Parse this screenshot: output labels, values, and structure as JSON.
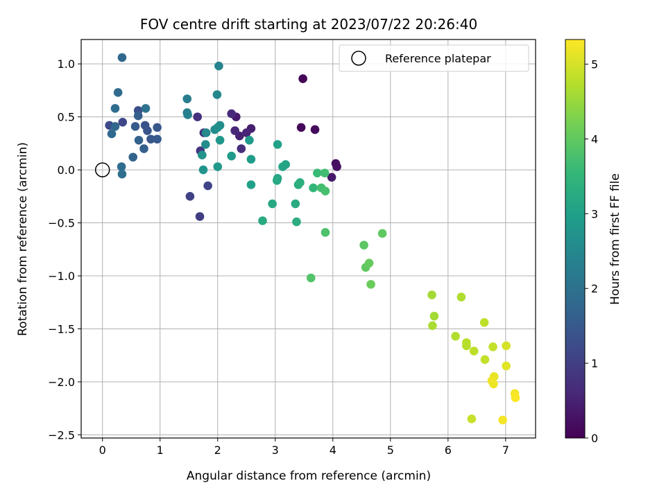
{
  "chart_data": {
    "type": "scatter",
    "title": "FOV centre drift starting at 2023/07/22 20:26:40",
    "xlabel": "Angular distance from reference (arcmin)",
    "ylabel": "Rotation from reference (arcmin)",
    "colorbar_label": "Hours from first FF file",
    "colormap": "viridis",
    "xlim": [
      -0.37,
      7.52
    ],
    "ylim": [
      -2.53,
      1.23
    ],
    "clim": [
      0,
      5.33
    ],
    "x_ticks": [
      0,
      1,
      2,
      3,
      4,
      5,
      6,
      7
    ],
    "x_tick_labels": [
      "0",
      "1",
      "2",
      "3",
      "4",
      "5",
      "6",
      "7"
    ],
    "y_ticks": [
      1.0,
      0.5,
      0.0,
      -0.5,
      -1.0,
      -1.5,
      -2.0,
      -2.5
    ],
    "y_tick_labels": [
      "1.0",
      "0.5",
      "0.0",
      "−0.5",
      "−1.0",
      "−1.5",
      "−2.0",
      "−2.5"
    ],
    "colorbar_ticks": [
      0,
      1,
      2,
      3,
      4,
      5
    ],
    "colorbar_tick_labels": [
      "0",
      "1",
      "2",
      "3",
      "4",
      "5"
    ],
    "grid": true,
    "legend": {
      "position": "top-right",
      "entries": [
        {
          "label": "Reference platepar",
          "marker": "open-circle"
        }
      ]
    },
    "reference_point": {
      "x": 0,
      "y": 0
    },
    "points": [
      {
        "x": 3.48,
        "y": 0.86,
        "h": 0.05
      },
      {
        "x": 3.45,
        "y": 0.4,
        "h": 0.1
      },
      {
        "x": 3.69,
        "y": 0.38,
        "h": 0.15
      },
      {
        "x": 4.05,
        "y": 0.06,
        "h": 0.2
      },
      {
        "x": 4.07,
        "y": 0.03,
        "h": 0.25
      },
      {
        "x": 3.98,
        "y": -0.07,
        "h": 0.35
      },
      {
        "x": 2.32,
        "y": 0.5,
        "h": 0.4
      },
      {
        "x": 2.58,
        "y": 0.39,
        "h": 0.45
      },
      {
        "x": 2.38,
        "y": 0.32,
        "h": 0.5
      },
      {
        "x": 2.5,
        "y": 0.35,
        "h": 0.55
      },
      {
        "x": 2.3,
        "y": 0.37,
        "h": 0.6
      },
      {
        "x": 2.24,
        "y": 0.53,
        "h": 0.65
      },
      {
        "x": 2.41,
        "y": 0.2,
        "h": 0.7
      },
      {
        "x": 1.65,
        "y": 0.5,
        "h": 0.75
      },
      {
        "x": 1.76,
        "y": 0.35,
        "h": 0.8
      },
      {
        "x": 1.7,
        "y": 0.18,
        "h": 0.85
      },
      {
        "x": 1.69,
        "y": -0.44,
        "h": 0.95
      },
      {
        "x": 1.52,
        "y": -0.25,
        "h": 1.05
      },
      {
        "x": 1.83,
        "y": -0.15,
        "h": 1.1
      },
      {
        "x": 0.35,
        "y": 0.45,
        "h": 1.15
      },
      {
        "x": 0.12,
        "y": 0.42,
        "h": 1.2
      },
      {
        "x": 0.62,
        "y": 0.56,
        "h": 1.3
      },
      {
        "x": 0.74,
        "y": 0.42,
        "h": 1.35
      },
      {
        "x": 0.95,
        "y": 0.4,
        "h": 1.45
      },
      {
        "x": 0.78,
        "y": 0.37,
        "h": 1.4
      },
      {
        "x": 0.84,
        "y": 0.29,
        "h": 1.45
      },
      {
        "x": 0.95,
        "y": 0.29,
        "h": 1.5
      },
      {
        "x": 0.57,
        "y": 0.41,
        "h": 1.55
      },
      {
        "x": 0.62,
        "y": 0.51,
        "h": 1.6
      },
      {
        "x": 0.72,
        "y": 0.2,
        "h": 1.6
      },
      {
        "x": 0.63,
        "y": 0.28,
        "h": 1.65
      },
      {
        "x": 0.53,
        "y": 0.12,
        "h": 1.7
      },
      {
        "x": 0.22,
        "y": 0.41,
        "h": 1.75
      },
      {
        "x": 0.16,
        "y": 0.34,
        "h": 1.8
      },
      {
        "x": 0.34,
        "y": 1.06,
        "h": 1.8
      },
      {
        "x": 0.27,
        "y": 0.73,
        "h": 1.85
      },
      {
        "x": 0.22,
        "y": 0.58,
        "h": 1.9
      },
      {
        "x": 0.33,
        "y": 0.03,
        "h": 1.9
      },
      {
        "x": 0.34,
        "y": -0.04,
        "h": 1.95
      },
      {
        "x": 0.75,
        "y": 0.58,
        "h": 2.0
      },
      {
        "x": 1.47,
        "y": 0.67,
        "h": 2.25
      },
      {
        "x": 1.47,
        "y": 0.54,
        "h": 2.3
      },
      {
        "x": 1.48,
        "y": 0.52,
        "h": 2.35
      },
      {
        "x": 2.02,
        "y": 0.98,
        "h": 2.4
      },
      {
        "x": 1.99,
        "y": 0.71,
        "h": 2.5
      },
      {
        "x": 1.8,
        "y": 0.35,
        "h": 2.5
      },
      {
        "x": 1.95,
        "y": 0.38,
        "h": 2.55
      },
      {
        "x": 2.04,
        "y": 0.42,
        "h": 2.6
      },
      {
        "x": 2.0,
        "y": 0.4,
        "h": 2.65
      },
      {
        "x": 1.79,
        "y": 0.24,
        "h": 2.6
      },
      {
        "x": 1.73,
        "y": 0.14,
        "h": 2.7
      },
      {
        "x": 1.75,
        "y": 0.0,
        "h": 2.75
      },
      {
        "x": 2.04,
        "y": 0.28,
        "h": 2.8
      },
      {
        "x": 2.0,
        "y": 0.03,
        "h": 2.85
      },
      {
        "x": 2.24,
        "y": 0.13,
        "h": 2.9
      },
      {
        "x": 2.55,
        "y": 0.28,
        "h": 2.9
      },
      {
        "x": 2.58,
        "y": 0.1,
        "h": 2.95
      },
      {
        "x": 2.58,
        "y": -0.14,
        "h": 3.0
      },
      {
        "x": 3.04,
        "y": 0.24,
        "h": 3.05
      },
      {
        "x": 3.13,
        "y": 0.03,
        "h": 3.1
      },
      {
        "x": 3.18,
        "y": 0.05,
        "h": 3.1
      },
      {
        "x": 3.04,
        "y": -0.08,
        "h": 3.15
      },
      {
        "x": 3.03,
        "y": -0.1,
        "h": 3.2
      },
      {
        "x": 2.95,
        "y": -0.32,
        "h": 3.2
      },
      {
        "x": 2.78,
        "y": -0.48,
        "h": 3.25
      },
      {
        "x": 3.35,
        "y": -0.32,
        "h": 3.25
      },
      {
        "x": 3.37,
        "y": -0.49,
        "h": 3.3
      },
      {
        "x": 3.4,
        "y": -0.14,
        "h": 3.3
      },
      {
        "x": 3.43,
        "y": -0.12,
        "h": 3.35
      },
      {
        "x": 3.66,
        "y": -0.17,
        "h": 3.5
      },
      {
        "x": 3.73,
        "y": -0.03,
        "h": 3.6
      },
      {
        "x": 3.8,
        "y": -0.17,
        "h": 3.7
      },
      {
        "x": 3.86,
        "y": -0.03,
        "h": 3.7
      },
      {
        "x": 3.87,
        "y": -0.2,
        "h": 3.75
      },
      {
        "x": 3.87,
        "y": -0.59,
        "h": 3.8
      },
      {
        "x": 3.62,
        "y": -1.02,
        "h": 3.85
      },
      {
        "x": 4.54,
        "y": -0.71,
        "h": 3.95
      },
      {
        "x": 4.86,
        "y": -0.6,
        "h": 4.0
      },
      {
        "x": 4.57,
        "y": -0.92,
        "h": 4.0
      },
      {
        "x": 4.63,
        "y": -0.88,
        "h": 4.05
      },
      {
        "x": 4.66,
        "y": -1.08,
        "h": 4.1
      },
      {
        "x": 5.72,
        "y": -1.18,
        "h": 4.6
      },
      {
        "x": 5.76,
        "y": -1.38,
        "h": 4.6
      },
      {
        "x": 5.73,
        "y": -1.47,
        "h": 4.65
      },
      {
        "x": 6.23,
        "y": -1.2,
        "h": 4.7
      },
      {
        "x": 6.13,
        "y": -1.57,
        "h": 4.7
      },
      {
        "x": 6.32,
        "y": -1.63,
        "h": 4.75
      },
      {
        "x": 6.32,
        "y": -1.66,
        "h": 4.75
      },
      {
        "x": 6.45,
        "y": -1.71,
        "h": 4.8
      },
      {
        "x": 6.63,
        "y": -1.44,
        "h": 4.8
      },
      {
        "x": 6.64,
        "y": -1.79,
        "h": 4.85
      },
      {
        "x": 6.78,
        "y": -1.67,
        "h": 4.85
      },
      {
        "x": 6.41,
        "y": -2.35,
        "h": 4.9
      },
      {
        "x": 7.01,
        "y": -1.66,
        "h": 5.0
      },
      {
        "x": 7.01,
        "y": -1.85,
        "h": 5.1
      },
      {
        "x": 6.8,
        "y": -1.95,
        "h": 5.15
      },
      {
        "x": 6.76,
        "y": -1.99,
        "h": 5.2
      },
      {
        "x": 6.79,
        "y": -2.02,
        "h": 5.2
      },
      {
        "x": 6.95,
        "y": -2.36,
        "h": 5.25
      },
      {
        "x": 7.16,
        "y": -2.11,
        "h": 5.25
      },
      {
        "x": 7.17,
        "y": -2.15,
        "h": 5.3
      }
    ]
  }
}
